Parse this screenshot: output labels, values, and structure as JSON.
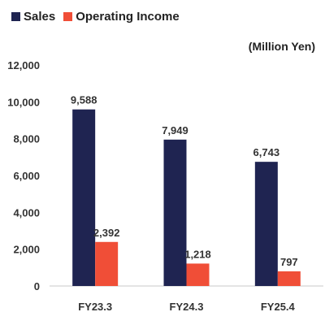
{
  "chart_data": {
    "type": "bar",
    "title": "",
    "unit_label": "(Million Yen)",
    "xlabel": "",
    "ylabel": "",
    "categories": [
      "FY23.3",
      "FY24.3",
      "FY25.4"
    ],
    "series": [
      {
        "name": "Sales",
        "color": "#1f2451",
        "values": [
          9588,
          7949,
          6743
        ],
        "labels": [
          "9,588",
          "7,949",
          "6,743"
        ]
      },
      {
        "name": "Operating Income",
        "color": "#f04e37",
        "values": [
          2392,
          1218,
          797
        ],
        "labels": [
          "2,392",
          "1,218",
          "797"
        ]
      }
    ],
    "ylim": [
      0,
      12000
    ],
    "yticks": [
      0,
      2000,
      4000,
      6000,
      8000,
      10000,
      12000
    ],
    "ytick_labels": [
      "0",
      "2,000",
      "4,000",
      "6,000",
      "8,000",
      "10,000",
      "12,000"
    ],
    "grid": false,
    "legend_position": "top-left"
  }
}
